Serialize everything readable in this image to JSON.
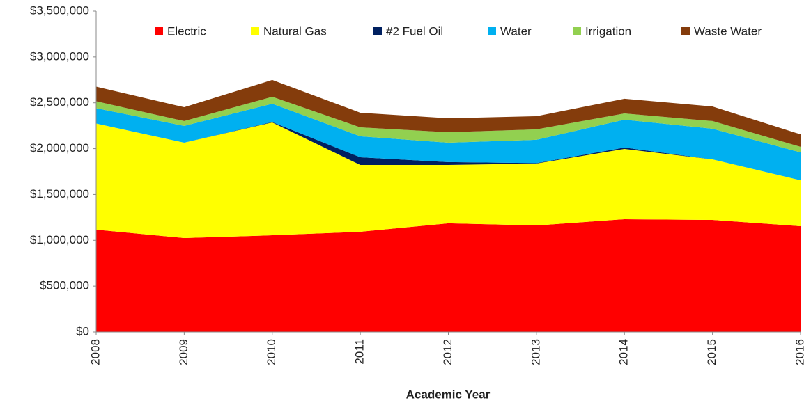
{
  "chart_data": {
    "type": "stacked_area",
    "x_label": "Academic Year",
    "categories": [
      "2008",
      "2009",
      "2010",
      "2011",
      "2012",
      "2013",
      "2014",
      "2015",
      "2016"
    ],
    "series": [
      {
        "name": "Electric",
        "color": "#ff0000",
        "values": [
          1116000,
          1025000,
          1055000,
          1093000,
          1185000,
          1162000,
          1230000,
          1222000,
          1154000
        ]
      },
      {
        "name": "Natural Gas",
        "color": "#ffff00",
        "values": [
          1158000,
          1040000,
          1230000,
          729000,
          637000,
          675000,
          767000,
          661000,
          501000
        ]
      },
      {
        "name": "#2 Fuel Oil",
        "color": "#002060",
        "values": [
          0,
          0,
          5000,
          84000,
          31000,
          5000,
          15000,
          0,
          0
        ]
      },
      {
        "name": "Water",
        "color": "#00b0f0",
        "values": [
          167000,
          183000,
          200000,
          228000,
          212000,
          254000,
          304000,
          334000,
          304000
        ]
      },
      {
        "name": "Irrigation",
        "color": "#92d050",
        "values": [
          76000,
          53000,
          76000,
          98000,
          114000,
          114000,
          68000,
          84000,
          61000
        ]
      },
      {
        "name": "Waste Water",
        "color": "#843c0c",
        "values": [
          159000,
          151000,
          183000,
          160000,
          152000,
          144000,
          160000,
          159000,
          136000
        ]
      }
    ],
    "ylim": [
      0,
      3500000
    ],
    "yticks": [
      {
        "value": 0,
        "label": "$0"
      },
      {
        "value": 500000,
        "label": "$500,000"
      },
      {
        "value": 1000000,
        "label": "$1,000,000"
      },
      {
        "value": 1500000,
        "label": "$1,500,000"
      },
      {
        "value": 2000000,
        "label": "$2,000,000"
      },
      {
        "value": 2500000,
        "label": "$2,500,000"
      },
      {
        "value": 3000000,
        "label": "$3,000,000"
      },
      {
        "value": 3500000,
        "label": "$3,500,000"
      }
    ],
    "legend": "top"
  }
}
